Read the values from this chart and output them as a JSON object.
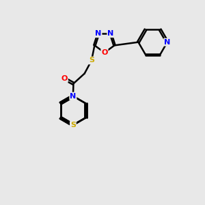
{
  "bg_color": "#e8e8e8",
  "bond_color": "#000000",
  "atom_colors": {
    "N": "#0000ff",
    "O": "#ff0000",
    "S": "#ccaa00",
    "C": "#000000"
  },
  "bond_width": 1.8,
  "figsize": [
    3.0,
    3.0
  ],
  "dpi": 100
}
